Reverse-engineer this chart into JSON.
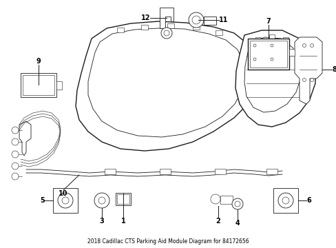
{
  "title": "2018 Cadillac CTS Parking Aid Module Diagram for 84172656",
  "bg_color": "#ffffff",
  "line_color": "#1a1a1a",
  "label_color": "#000000",
  "fig_width": 4.89,
  "fig_height": 3.6,
  "dpi": 100
}
